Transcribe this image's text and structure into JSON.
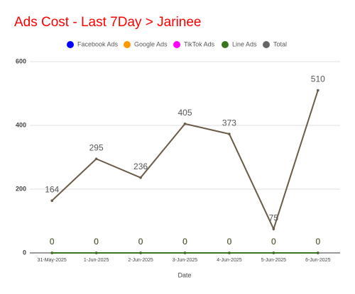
{
  "chart_data": {
    "type": "line",
    "title": "Ads Cost - Last 7Day > Jarinee",
    "x_label": "Date",
    "categories": [
      "31-May-2025",
      "1-Jun-2025",
      "2-Jun-2025",
      "3-Jun-2025",
      "4-Jun-2025",
      "5-Jun-2025",
      "6-Jun-2025"
    ],
    "series": [
      {
        "name": "Facebook Ads",
        "color": "#0000ff",
        "values": [
          0,
          0,
          0,
          0,
          0,
          0,
          0
        ]
      },
      {
        "name": "Google Ads",
        "color": "#ff9900",
        "values": [
          0,
          0,
          0,
          0,
          0,
          0,
          0
        ]
      },
      {
        "name": "TikTok Ads",
        "color": "#ff00ff",
        "values": [
          0,
          0,
          0,
          0,
          0,
          0,
          0
        ]
      },
      {
        "name": "Line Ads",
        "color": "#38761d",
        "values": [
          0,
          0,
          0,
          0,
          0,
          0,
          0
        ]
      },
      {
        "name": "Total",
        "color": "#666666",
        "line_color": "#6b5a45",
        "values": [
          164,
          295,
          236,
          405,
          373,
          75,
          510
        ]
      }
    ],
    "ylim": [
      0,
      600
    ],
    "yticks": [
      0,
      200,
      400,
      600
    ],
    "grid": true
  }
}
